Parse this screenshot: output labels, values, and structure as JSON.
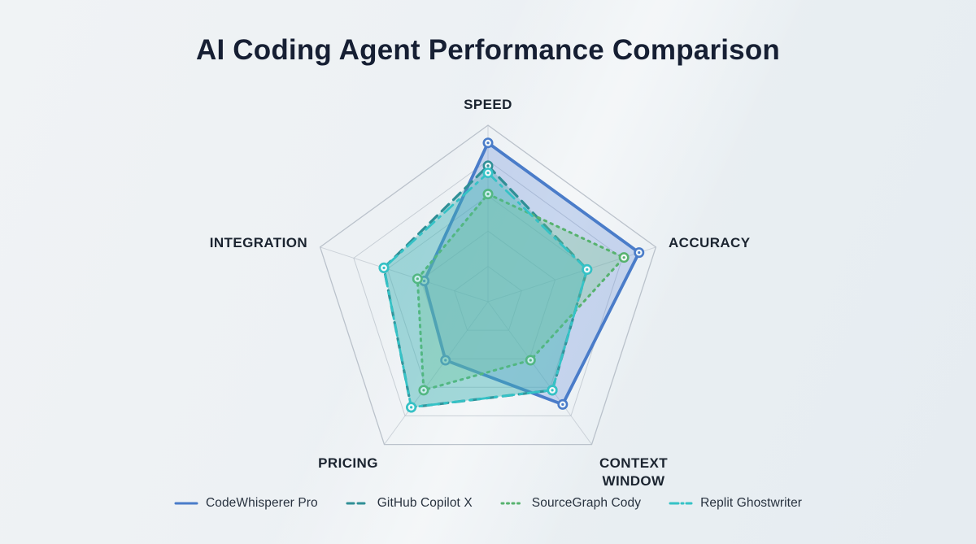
{
  "page": {
    "title": "AI Coding Agent Performance Comparison"
  },
  "chart_data": {
    "type": "radar",
    "title": "AI Coding Agent Performance Comparison",
    "axes": [
      "SPEED",
      "ACCURACY",
      "CONTEXT WINDOW",
      "PRICING",
      "INTEGRATION"
    ],
    "scale": {
      "min": 0,
      "max": 10,
      "rings": [
        2,
        4,
        6,
        8,
        10
      ],
      "tick_labels_visible": false
    },
    "grid": true,
    "legend_position": "bottom",
    "series": [
      {
        "name": "CodeWhisperer Pro",
        "color": "#4a7cc9",
        "fill": "rgba(100,140,215,0.30)",
        "line_style": "solid",
        "values": [
          9.0,
          9.0,
          7.2,
          4.1,
          3.8
        ]
      },
      {
        "name": "GitHub Copilot X",
        "color": "#2f8f96",
        "fill": "rgba(60,160,160,0.30)",
        "line_style": "dashed",
        "values": [
          7.7,
          5.9,
          6.2,
          7.4,
          6.2
        ]
      },
      {
        "name": "SourceGraph Cody",
        "color": "#57b26e",
        "fill": "rgba(120,200,140,0.30)",
        "line_style": "dotted",
        "values": [
          6.1,
          8.1,
          4.1,
          6.2,
          4.2
        ]
      },
      {
        "name": "Replit Ghostwriter",
        "color": "#35c2c6",
        "fill": "rgba(70,200,205,0.22)",
        "line_style": "dash-dot",
        "values": [
          7.3,
          5.9,
          6.2,
          7.4,
          6.2
        ]
      }
    ]
  }
}
